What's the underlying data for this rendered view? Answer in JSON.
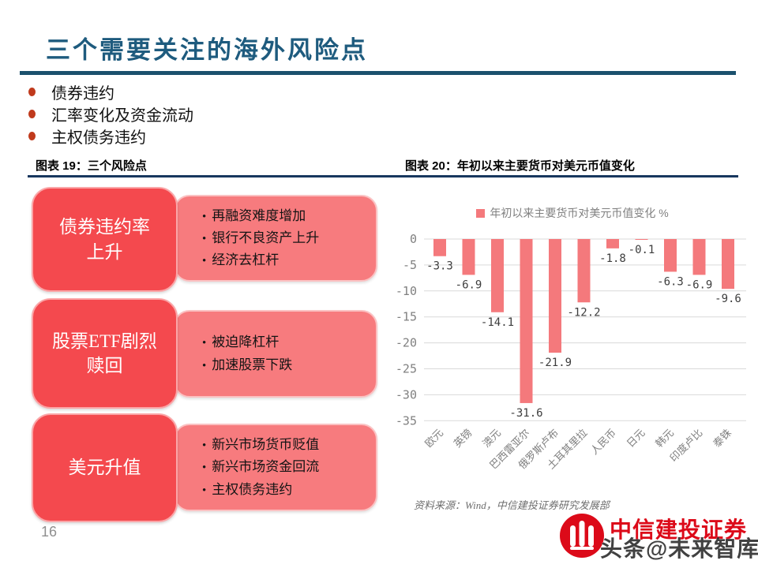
{
  "title": "三个需要关注的海外风险点",
  "page_number": "16",
  "bullets": [
    "债券违约",
    "汇率变化及资金流动",
    "主权债务违约"
  ],
  "figures": {
    "left_caption": "图表 19：三个风险点",
    "right_caption": "图表 20：年初以来主要货币对美元币值变化"
  },
  "diagram": {
    "rows": [
      {
        "label_lines": [
          "债券违约率",
          "上升"
        ],
        "details": [
          "再融资难度增加",
          "银行不良资产上升",
          "经济去杠杆"
        ]
      },
      {
        "label_lines": [
          "股票ETF剧烈",
          "赎回"
        ],
        "details": [
          "被迫降杠杆",
          "加速股票下跌"
        ]
      },
      {
        "label_lines": [
          "美元升值"
        ],
        "details": [
          "新兴市场货币贬值",
          "新兴市场资金回流",
          "主权债务违约"
        ]
      }
    ]
  },
  "chart_data": {
    "type": "bar",
    "legend": "年初以来主要货币对美元币值变化 %",
    "legend_position": "top",
    "categories": [
      "欧元",
      "英镑",
      "澳元",
      "巴西雷亚尔",
      "俄罗斯卢布",
      "土耳其里拉",
      "人民币",
      "日元",
      "韩元",
      "印度卢比",
      "泰铢"
    ],
    "values": [
      -3.3,
      -6.9,
      -14.1,
      -31.6,
      -21.9,
      -12.2,
      -1.8,
      -0.1,
      -6.3,
      -6.9,
      -9.6
    ],
    "ylim": [
      -35,
      0
    ],
    "ytick_step": 5,
    "grid": true,
    "bar_color": "#f4797c",
    "axis_text_color": "#808080",
    "label_text_color": "#3d3d3d",
    "grid_color": "#d9d9d9"
  },
  "source_note": "资料来源：Wind，中信建投证券研究发展部",
  "footer": {
    "logo_text": "中信建投证券",
    "watermark": "头条@未来智库"
  },
  "colors": {
    "title": "#1e5b7e",
    "title_rule": "#1b516d",
    "caption_rule": "#17375e",
    "bullet_dot": "#c03a1c",
    "box_dark_red": "#f4494e",
    "box_light_red": "#f77b7e",
    "bar": "#f4797c",
    "logo_red": "#dc0a19"
  }
}
